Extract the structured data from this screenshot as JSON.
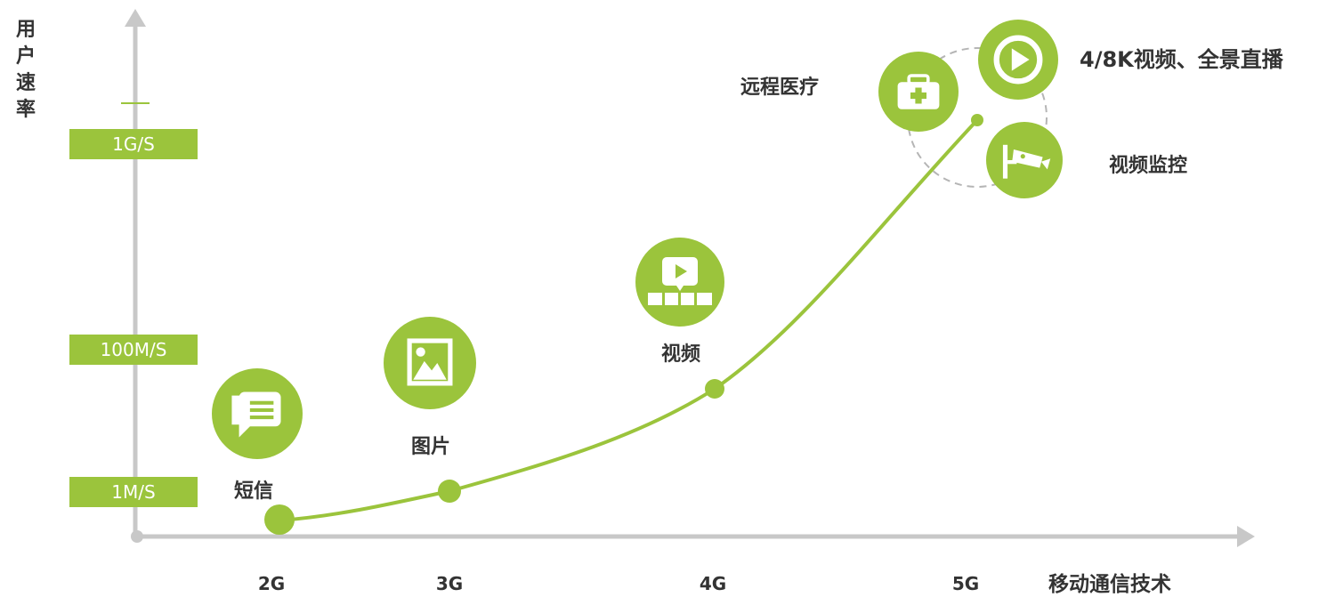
{
  "y_axis_label": [
    "用",
    "户",
    "速",
    "率"
  ],
  "speed_levels": [
    "1G/S",
    "100M/S",
    "1M/S"
  ],
  "x_axis_title": "移动通信技术",
  "technologies": [
    "2G",
    "3G",
    "4G",
    "5G"
  ],
  "applications": {
    "sms": "短信",
    "picture": "图片",
    "video": "视频",
    "telemedicine": "远程医疗",
    "uhd_video": "4/8K视频、全景直播",
    "surveillance": "视频监控"
  },
  "icons": {
    "sms": "message-icon",
    "picture": "image-icon",
    "video": "video-player-icon",
    "telemedicine": "first-aid-kit-icon",
    "uhd_video": "play-icon",
    "surveillance": "cctv-camera-icon"
  },
  "colors": {
    "accent": "#9bc43c",
    "axis": "#c8c8c8",
    "text": "#333333"
  }
}
